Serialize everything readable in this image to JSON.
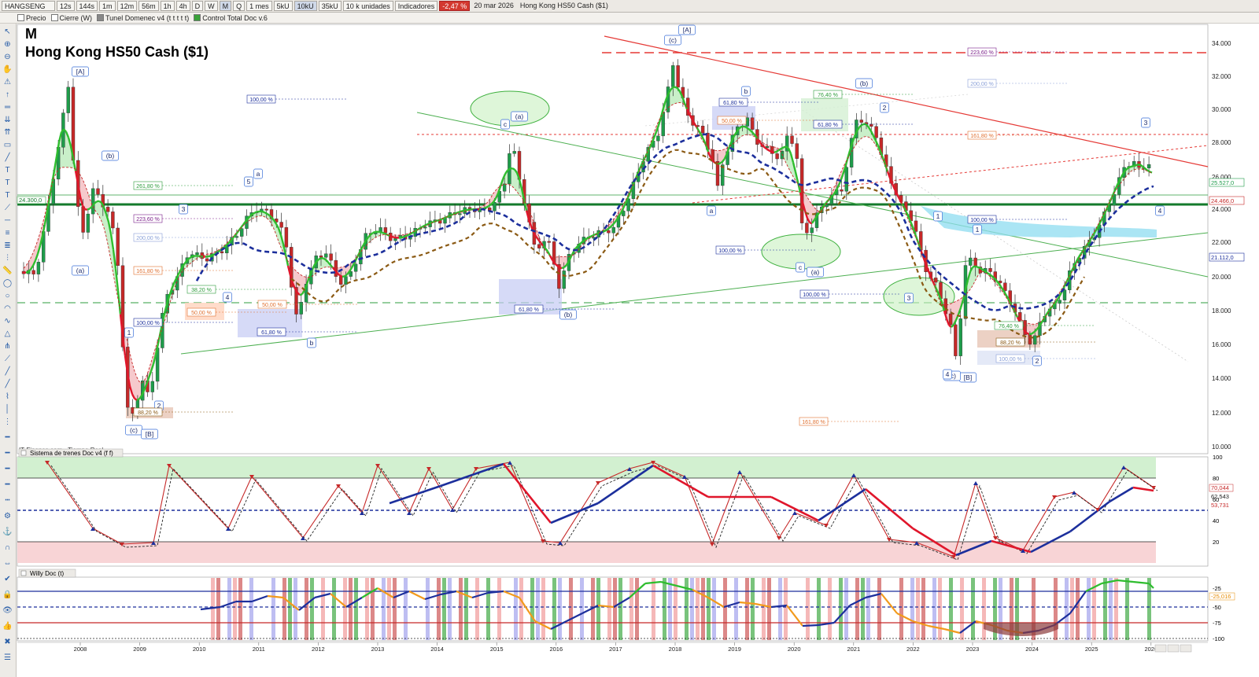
{
  "toolbar": {
    "symbol": "HANGSENG",
    "intervals": [
      "12s",
      "144s",
      "1m",
      "12m",
      "56m",
      "1h",
      "4h",
      "D",
      "W",
      "M",
      "Q"
    ],
    "active_interval": "M",
    "period": "1 mes",
    "quantity_buttons": [
      "5kU",
      "10kU",
      "35kU"
    ],
    "units": "10 k unidades",
    "indicators_label": "Indicadores",
    "change": "-2,47 %",
    "date": "20 mar 2026",
    "instrument_name": "Hong Kong HS50 Cash ($1)"
  },
  "overlays": [
    {
      "label": "Precio",
      "checked": false
    },
    {
      "label": "Cierre (W)",
      "checked": false
    },
    {
      "label": "Tunel Domenec v4 (t t t t t)",
      "checked": true
    },
    {
      "label": "Control Total Doc v.6",
      "checked": true
    }
  ],
  "chart": {
    "timeframe": "M",
    "title": "Hong Kong HS50 Cash ($1)",
    "source": "IT-Finance.com - Tiempo Real",
    "y_ticks": [
      "34.000",
      "32.000",
      "30.000",
      "28.000",
      "26.000",
      "24.000",
      "22.000",
      "20.000",
      "18.000",
      "16.000",
      "14.000",
      "12.000",
      "10.000"
    ],
    "x_years": [
      "2008",
      "2009",
      "2010",
      "2011",
      "2012",
      "2013",
      "2014",
      "2015",
      "2016",
      "2017",
      "2018",
      "2019",
      "2020",
      "2021",
      "2022",
      "2023",
      "2024",
      "2025",
      "2026"
    ],
    "price_tags": [
      {
        "text": "25.527,0",
        "color": "#1e9c4a"
      },
      {
        "text": "24.466,0",
        "color": "#c62828"
      },
      {
        "text": "21.112,0",
        "color": "#1c2f9c"
      }
    ],
    "level_label": "24.300,0",
    "wave_labels": [
      "[A]",
      "(b)",
      "(a)",
      "(c)",
      "[B]",
      "a",
      "b",
      "c",
      "(a)",
      "(b)",
      "[A]",
      "(c)",
      "b",
      "a",
      "(b)",
      "(a)",
      "c",
      "[B]",
      "(c)",
      "1",
      "2",
      "3",
      "4",
      "5",
      "1",
      "2",
      "3",
      "4",
      "1",
      "2",
      "3",
      "4"
    ],
    "fib_labels": [
      "100,00 %",
      "261,80 %",
      "223,60 %",
      "200,00 %",
      "161,80 %",
      "100,00 %",
      "50,00 %",
      "38,20 %",
      "61,80 %",
      "88,20 %",
      "50,00 %",
      "61,80 %",
      "61,80 %",
      "50,00 %",
      "76,40 %",
      "61,80 %",
      "100,00 %",
      "100,00 %",
      "223,60 %",
      "200,00 %",
      "161,80 %",
      "100,00 %",
      "76,40 %",
      "88,20 %",
      "100,00 %",
      "161,80 %"
    ]
  },
  "panel1": {
    "title": "Sistema de trenes Doc v4 (f f)",
    "y_ticks": [
      "100",
      "80",
      "60",
      "40",
      "20"
    ],
    "value_tags": [
      "70,044",
      "62,543",
      "53,731"
    ]
  },
  "panel2": {
    "title": "Willy Doc (t)",
    "y_ticks": [
      "-25",
      "-50",
      "-75",
      "-100"
    ],
    "value_tags": [
      "-25,016"
    ]
  }
}
